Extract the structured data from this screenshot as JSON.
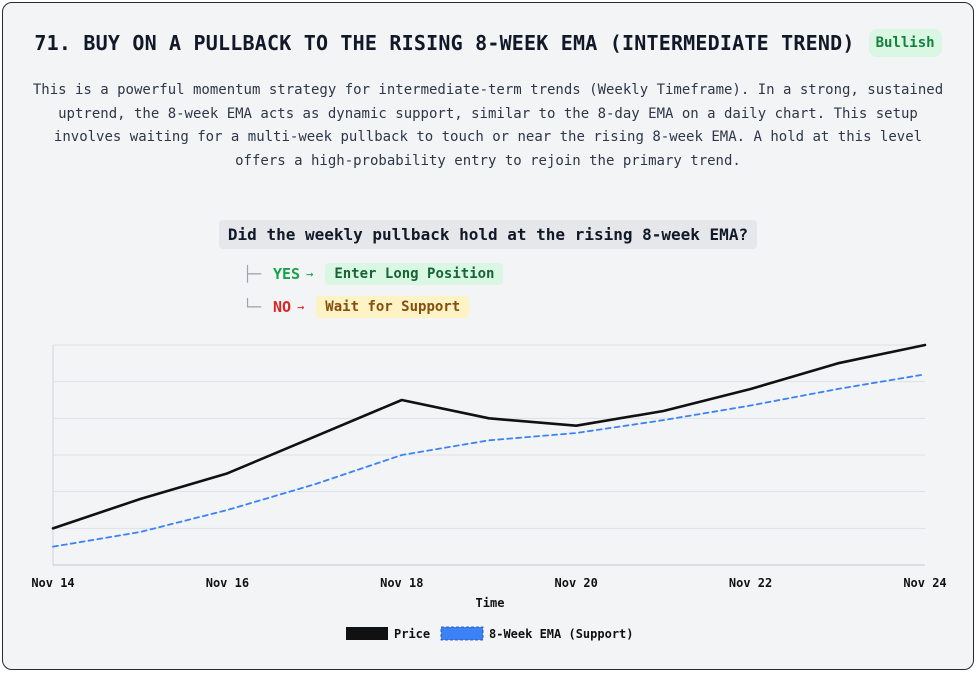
{
  "header": {
    "title": "71. BUY ON A PULLBACK TO THE RISING 8-WEEK EMA (INTERMEDIATE TREND)",
    "badge": "Bullish"
  },
  "description": "This is a powerful momentum strategy for intermediate-term trends (Weekly Timeframe). In a strong, sustained uptrend, the 8-week EMA acts as dynamic support, similar to the 8-day EMA on a daily chart. This setup involves waiting for a multi-week pullback to touch or near the rising 8-week EMA. A hold at this level offers a high-probability entry to rejoin the primary trend.",
  "decision": {
    "question": "Did the weekly pullback hold at the rising 8-week EMA?",
    "yes_label": "YES",
    "yes_outcome": "Enter Long Position",
    "no_label": "NO",
    "no_outcome": "Wait for Support",
    "arrow": "→"
  },
  "colors": {
    "price": "#111111",
    "ema": "#3b82f6",
    "bullish": "#15803d"
  },
  "chart_data": {
    "type": "line",
    "title": "",
    "xlabel": "Time",
    "ylabel": "",
    "x": [
      14,
      15,
      16,
      17,
      18,
      19,
      20,
      21,
      22,
      23,
      24
    ],
    "x_tick_labels": [
      "Nov 14",
      "Nov 16",
      "Nov 18",
      "Nov 20",
      "Nov 22",
      "Nov 24"
    ],
    "x_tick_values": [
      14,
      16,
      18,
      20,
      22,
      24
    ],
    "ylim": [
      0,
      6
    ],
    "grid": true,
    "legend_position": "bottom-center",
    "series": [
      {
        "name": "Price",
        "style": "solid",
        "values": [
          1.0,
          1.8,
          2.5,
          3.5,
          4.5,
          4.0,
          3.8,
          4.2,
          4.8,
          5.5,
          6.0
        ]
      },
      {
        "name": "8-Week EMA (Support)",
        "style": "dashed",
        "values": [
          0.5,
          0.9,
          1.5,
          2.2,
          3.0,
          3.4,
          3.6,
          3.95,
          4.35,
          4.8,
          5.2
        ]
      }
    ]
  }
}
